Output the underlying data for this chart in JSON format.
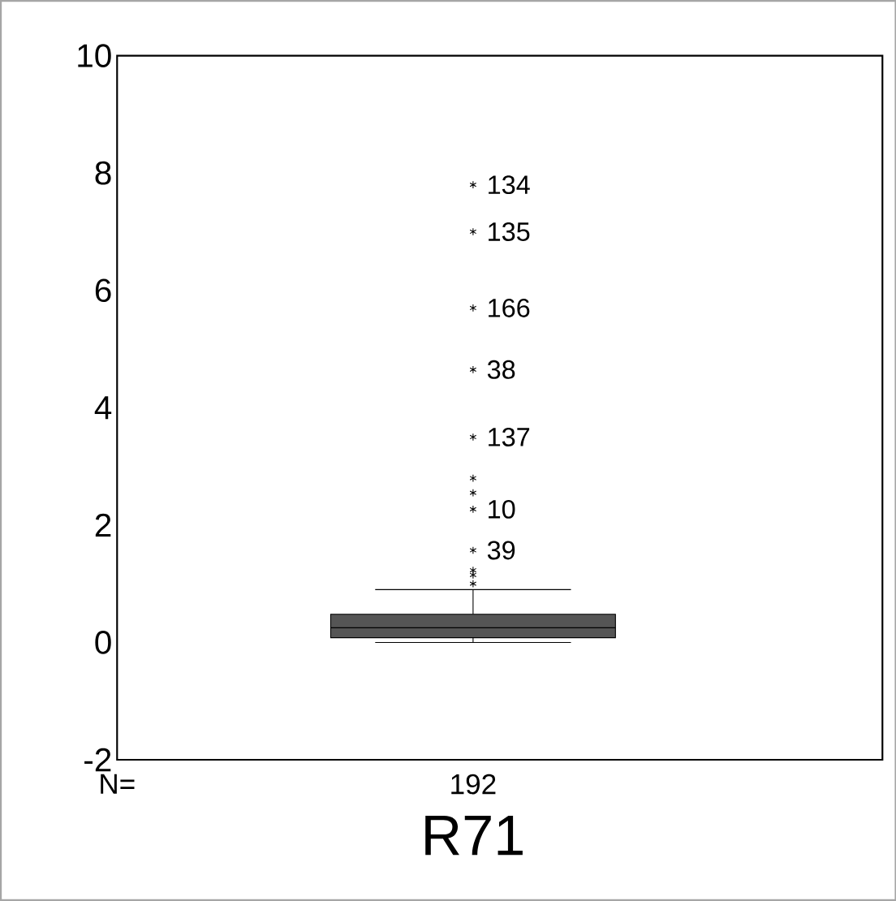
{
  "chart_data": {
    "type": "box",
    "categories": [
      "R71"
    ],
    "boxes": [
      {
        "low": 0.0,
        "q1": 0.08,
        "median": 0.25,
        "q3": 0.48,
        "high": 0.9,
        "outliers": [
          7.8,
          7.0,
          5.7,
          4.65,
          3.5,
          2.27,
          1.57,
          2.8,
          2.55,
          1.23,
          1.15,
          1.0
        ]
      }
    ],
    "color": "#555555",
    "marker": "star",
    "ylim": [
      -2,
      10
    ],
    "yticks": [
      -2,
      0,
      2,
      4,
      6,
      8,
      10
    ],
    "annotations": [
      "N=",
      "192",
      "134",
      "135",
      "166",
      "38",
      "137",
      "10",
      "39"
    ]
  }
}
